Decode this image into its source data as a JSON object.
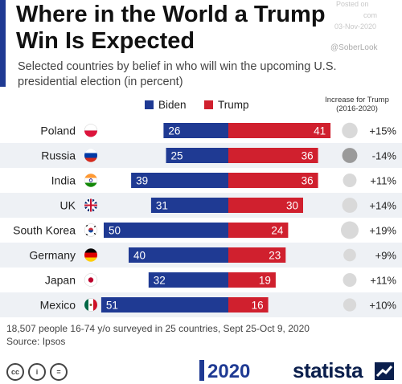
{
  "header": {
    "title": "Where in the World a Trump Win Is Expected",
    "subtitle": "Selected countries by belief in who will win the upcoming U.S. presidential election (in percent)"
  },
  "watermark": {
    "posted": "Posted on",
    "site": "com",
    "date": "03-Nov-2020",
    "handle": "@SoberLook"
  },
  "legend": {
    "biden": "Biden",
    "trump": "Trump"
  },
  "increase_header": {
    "line1": "Increase for Trump",
    "line2": "(2016-2020)"
  },
  "colors": {
    "biden": "#1f3a93",
    "trump": "#d0202e",
    "circle": "#d9d9d9",
    "circle_dark": "#9a9a9a",
    "band": "#eef1f5"
  },
  "chart_data": {
    "type": "bar",
    "orientation": "horizontal-diverging",
    "categories": [
      "Poland",
      "Russia",
      "India",
      "UK",
      "South Korea",
      "Germany",
      "Japan",
      "Mexico"
    ],
    "flags": [
      "poland-flag-icon",
      "russia-flag-icon",
      "india-flag-icon",
      "uk-flag-icon",
      "south-korea-flag-icon",
      "germany-flag-icon",
      "japan-flag-icon",
      "mexico-flag-icon"
    ],
    "series": [
      {
        "name": "Biden",
        "values": [
          26,
          25,
          39,
          31,
          50,
          40,
          32,
          51
        ]
      },
      {
        "name": "Trump",
        "values": [
          41,
          36,
          36,
          30,
          24,
          23,
          19,
          16
        ]
      }
    ],
    "increase_for_trump": {
      "values": [
        15,
        -14,
        11,
        14,
        19,
        9,
        11,
        10
      ],
      "labels": [
        "+15%",
        "-14%",
        "+11%",
        "+14%",
        "+19%",
        "+9%",
        "+11%",
        "+10%"
      ]
    },
    "title": "Where in the World a Trump Win Is Expected",
    "xlabel": "",
    "ylabel": "",
    "unit": "percent"
  },
  "footnote": {
    "line1": "18,507 people 16-74 y/o surveyed in 25 countries, Sept 25-Oct 9, 2020",
    "line2": "Source: Ipsos"
  },
  "footer": {
    "cc": [
      "cc",
      "i",
      "="
    ],
    "logo_year": "2020",
    "brand": "statista"
  }
}
